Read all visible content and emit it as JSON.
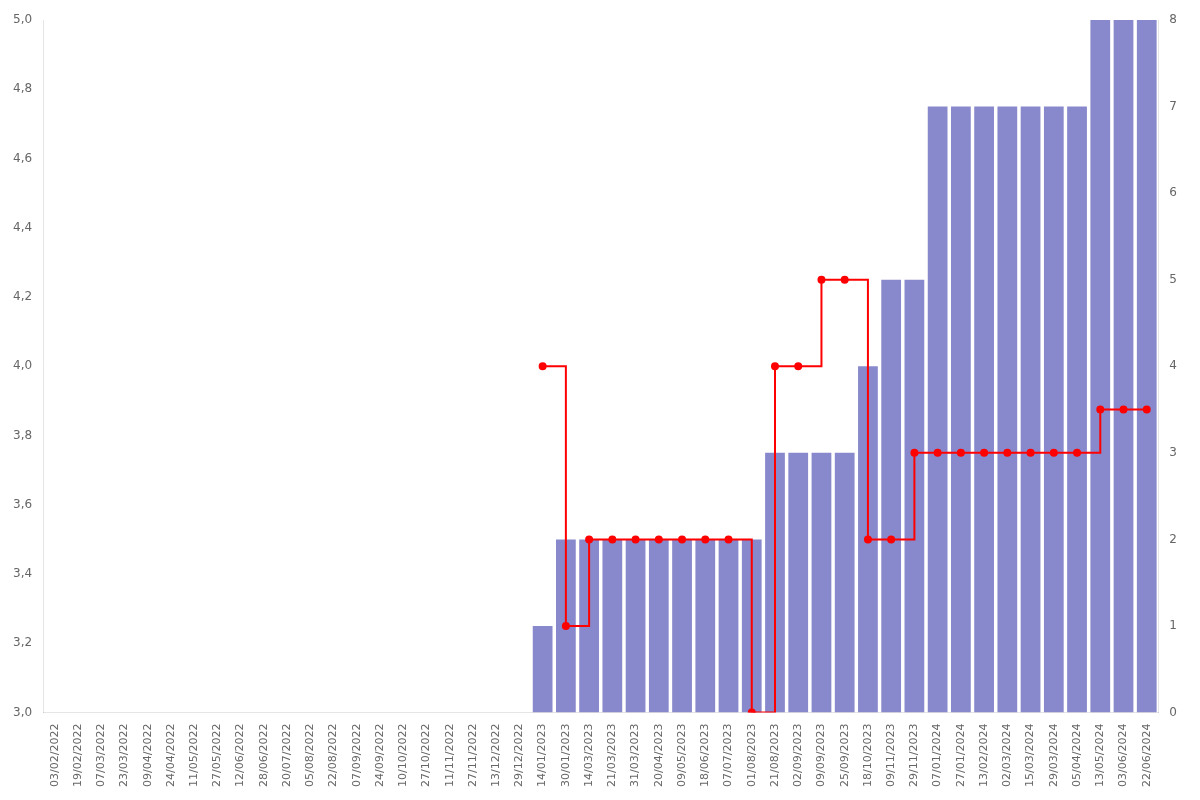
{
  "chart_data": {
    "type": "bar",
    "categories": [
      "03/02/2022",
      "19/02/2022",
      "07/03/2022",
      "23/03/2022",
      "09/04/2022",
      "24/04/2022",
      "11/05/2022",
      "27/05/2022",
      "12/06/2022",
      "28/06/2022",
      "20/07/2022",
      "05/08/2022",
      "22/08/2022",
      "07/09/2022",
      "24/09/2022",
      "10/10/2022",
      "27/10/2022",
      "11/11/2022",
      "27/11/2022",
      "13/12/2022",
      "29/12/2022",
      "14/01/2023",
      "30/01/2023",
      "14/03/2023",
      "21/03/2023",
      "31/03/2023",
      "20/04/2023",
      "09/05/2023",
      "18/06/2023",
      "07/07/2023",
      "01/08/2023",
      "21/08/2023",
      "02/09/2023",
      "09/09/2023",
      "25/09/2023",
      "18/10/2023",
      "09/11/2023",
      "29/11/2023",
      "07/01/2024",
      "27/01/2024",
      "13/02/2024",
      "02/03/2024",
      "15/03/2024",
      "29/03/2024",
      "05/04/2024",
      "13/05/2024",
      "03/06/2024",
      "22/06/2024"
    ],
    "series": [
      {
        "type": "bar",
        "axis": "y2",
        "color": "#8888cc",
        "values": [
          0,
          0,
          0,
          0,
          0,
          0,
          0,
          0,
          0,
          0,
          0,
          0,
          0,
          0,
          0,
          0,
          0,
          0,
          0,
          0,
          0,
          1,
          2,
          2,
          2,
          2,
          2,
          2,
          2,
          2,
          2,
          3,
          3,
          3,
          3,
          4,
          5,
          5,
          7,
          7,
          7,
          7,
          7,
          7,
          7,
          8,
          8,
          8
        ]
      },
      {
        "type": "step",
        "color": "#ff0000",
        "marker": "circle",
        "values": [
          null,
          null,
          null,
          null,
          null,
          null,
          null,
          null,
          null,
          null,
          null,
          null,
          null,
          null,
          null,
          null,
          null,
          null,
          null,
          null,
          null,
          4.0,
          3.25,
          3.5,
          3.5,
          3.5,
          3.5,
          3.5,
          3.5,
          3.5,
          3.0,
          4.0,
          4.0,
          4.25,
          4.25,
          3.5,
          3.5,
          3.75,
          3.75,
          3.75,
          3.75,
          3.75,
          3.75,
          3.75,
          3.75,
          3.875,
          3.875,
          3.875
        ]
      }
    ],
    "ylim": [
      3.0,
      5.0
    ],
    "yticks": [
      {
        "value": 3.0,
        "label": "3,0"
      },
      {
        "value": 3.2,
        "label": "3,2"
      },
      {
        "value": 3.4,
        "label": "3,4"
      },
      {
        "value": 3.6,
        "label": "3,6"
      },
      {
        "value": 3.8,
        "label": "3,8"
      },
      {
        "value": 4.0,
        "label": "4,0"
      },
      {
        "value": 4.2,
        "label": "4,2"
      },
      {
        "value": 4.4,
        "label": "4,4"
      },
      {
        "value": 4.6,
        "label": "4,6"
      },
      {
        "value": 4.8,
        "label": "4,8"
      },
      {
        "value": 5.0,
        "label": "5,0"
      }
    ],
    "y2lim": [
      0,
      8
    ],
    "y2ticks": [
      0,
      1,
      2,
      3,
      4,
      5,
      6,
      7,
      8
    ],
    "grid": false
  }
}
